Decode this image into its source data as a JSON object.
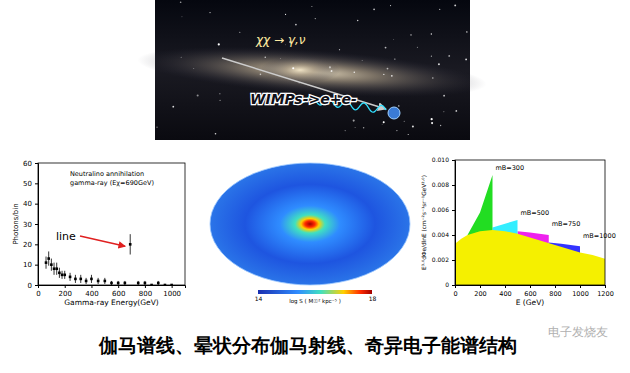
{
  "illustration": {
    "labels": [
      "χχ → γ,ν",
      "WIMPs->e+e-"
    ]
  },
  "chart_data": [
    {
      "type": "scatter",
      "title": "Neutralino annihilation",
      "subtitle": "gamma-ray (Eχ=690GeV)",
      "annotation": "line",
      "x_label": "Gamma-ray Energy(GeV)",
      "y_label": "Photons/bin",
      "x": [
        60,
        80,
        100,
        120,
        140,
        160,
        180,
        200,
        240,
        280,
        320,
        360,
        400,
        450,
        500,
        550,
        600,
        650,
        690,
        750,
        800,
        850,
        900,
        950,
        1000
      ],
      "values": [
        11,
        13,
        10,
        8,
        8,
        6,
        5,
        5,
        4,
        3,
        3,
        2,
        3,
        2,
        2,
        1,
        1,
        1,
        20,
        1,
        1,
        0,
        1,
        0,
        0
      ],
      "errors": [
        3,
        3.5,
        3,
        3,
        3,
        2.5,
        2,
        2,
        2,
        2,
        2,
        1.5,
        2,
        1.5,
        1.5,
        1,
        1,
        1,
        5,
        1,
        1,
        0,
        1,
        0,
        0
      ],
      "xlim": [
        0,
        1100
      ],
      "ylim": [
        0,
        60
      ],
      "xticks": [
        0,
        200,
        400,
        600,
        800,
        1000
      ],
      "yticks": [
        0,
        10,
        20,
        30,
        40,
        50,
        60
      ],
      "marker": "square",
      "color": "#000000"
    },
    {
      "type": "area",
      "x_label": "E (GeV)",
      "y_label": "E³·⁰dΦe/dlnE (cm⁻²s⁻¹sr⁻¹GeV²·⁰)",
      "series": [
        {
          "color": "#f5f000",
          "x": [
            0,
            50,
            100,
            200,
            300,
            400,
            500,
            600,
            700,
            800,
            900,
            1000,
            1100,
            1200
          ],
          "values": [
            0.0033,
            0.0037,
            0.004,
            0.0043,
            0.0044,
            0.0043,
            0.0041,
            0.0038,
            0.0035,
            0.0032,
            0.0029,
            0.0026,
            0.0024,
            0.0021
          ]
        },
        {
          "name": "mB=300",
          "color": "#22dd22",
          "x": [
            100,
            200,
            300,
            300
          ],
          "values": [
            0.004,
            0.0058,
            0.0088,
            0.0046
          ]
        },
        {
          "name": "mB=500",
          "color": "#33eeff",
          "x": [
            300,
            400,
            500,
            500
          ],
          "values": [
            0.0046,
            0.0049,
            0.0052,
            0.0043
          ]
        },
        {
          "name": "mB=750",
          "color": "#ee22ee",
          "x": [
            500,
            600,
            750,
            750
          ],
          "values": [
            0.0043,
            0.0042,
            0.004,
            0.0034
          ]
        },
        {
          "name": "mB=1000",
          "color": "#3333ff",
          "x": [
            750,
            850,
            1000,
            1000
          ],
          "values": [
            0.0034,
            0.0033,
            0.0031,
            0.0027
          ]
        }
      ],
      "xlim": [
        0,
        1200
      ],
      "ylim": [
        0,
        0.01
      ],
      "xticks": [
        0,
        200,
        400,
        600,
        800,
        1000,
        1200
      ],
      "yticks": [
        0,
        0.002,
        0.004,
        0.006,
        0.008,
        {
          "value": 0.01,
          "label": "0.010"
        }
      ]
    }
  ],
  "sky_map": {
    "colorbar": {
      "range": [
        14,
        18
      ],
      "ticks": [
        14,
        18
      ],
      "label": "log S ( M☉² kpc⁻⁵ )"
    }
  },
  "caption": "伽马谱线、晕状分布伽马射线、奇异电子能谱结构",
  "watermark": "电子发烧友"
}
